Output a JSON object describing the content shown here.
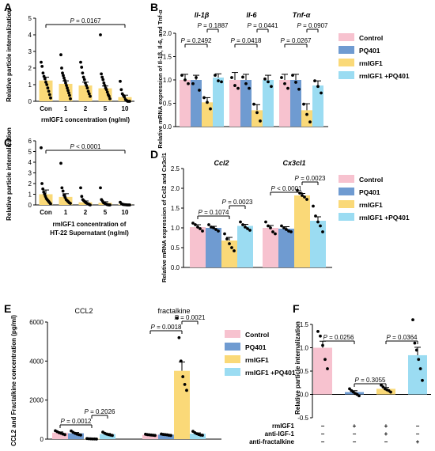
{
  "panel_labels": [
    "A",
    "B",
    "C",
    "D",
    "E",
    "F"
  ],
  "chart_data": [
    {
      "panel": "A",
      "type": "bar",
      "ylabel": "Relative particle internalization",
      "xlabel": "rmIGF1 concentration (ng/ml)",
      "ylim": [
        0,
        5
      ],
      "yticks": [
        "0",
        "1",
        "2",
        "3",
        "4",
        "5"
      ],
      "categories": [
        "Con",
        "1",
        "2",
        "5",
        "10"
      ],
      "values": [
        1.25,
        1.05,
        0.95,
        0.78,
        0.25
      ],
      "errors": [
        0.2,
        0.18,
        0.2,
        0.14,
        0.12
      ],
      "points": [
        [
          2.35,
          2.1,
          1.7,
          1.5,
          1.35,
          1.15,
          1.0,
          0.8,
          0.6,
          0.4,
          0.2
        ],
        [
          2.8,
          2.0,
          1.7,
          1.55,
          1.4,
          1.25,
          1.1,
          0.95,
          0.8,
          0.65,
          0.5,
          0.35,
          0.15
        ],
        [
          2.35,
          2.05,
          1.7,
          1.45,
          1.3,
          1.1,
          0.95,
          0.8,
          0.6,
          0.45,
          0.3
        ],
        [
          4.0,
          1.65,
          1.45,
          1.3,
          1.1,
          0.95,
          0.8,
          0.7,
          0.55,
          0.4,
          0.3,
          0.15
        ],
        [
          1.2,
          0.7,
          0.45,
          0.35,
          0.25,
          0.1,
          0.05,
          0.0,
          0.0,
          0.0
        ]
      ],
      "annotations": [
        {
          "text": "P = 0.0167"
        }
      ],
      "bar_color": "#FAD978",
      "grid": false
    },
    {
      "panel": "B",
      "type": "bar",
      "ylabel": "Relative mRNA expression of Il-1β, Il-6, and Tnf-α",
      "ylim": [
        0,
        2.0
      ],
      "yticks": [
        "0.0",
        "0.5",
        "1.0",
        "1.5",
        "2.0"
      ],
      "groups": [
        "Il-1β",
        "Il-6",
        "Tnf-α"
      ],
      "series": [
        {
          "name": "Control",
          "color": "#F7C2CF",
          "values": [
            1.0,
            1.0,
            1.0
          ],
          "errors": [
            0.12,
            0.16,
            0.12
          ],
          "points": [
            [
              1.1,
              1.0,
              0.92
            ],
            [
              1.05,
              0.88,
              0.82
            ],
            [
              1.05,
              0.92,
              0.82
            ]
          ]
        },
        {
          "name": "PQ401",
          "color": "#6F9BD1",
          "values": [
            1.0,
            1.0,
            1.0
          ],
          "errors": [
            0.1,
            0.12,
            0.12
          ],
          "points": [
            [
              0.92,
              1.05,
              0.78
            ],
            [
              1.06,
              0.92,
              0.82
            ],
            [
              1.1,
              0.95,
              0.8
            ]
          ]
        },
        {
          "name": "rmIGF1",
          "color": "#FAD978",
          "values": [
            0.52,
            0.35,
            0.35
          ],
          "errors": [
            0.1,
            0.12,
            0.14
          ],
          "points": [
            [
              0.62,
              0.52,
              0.38
            ],
            [
              0.48,
              0.3,
              0.12
            ],
            [
              0.48,
              0.26,
              0.1
            ]
          ]
        },
        {
          "name": "rmIGF1 +PQ401",
          "color": "#9BDCF2",
          "values": [
            1.05,
            1.0,
            0.88
          ],
          "errors": [
            0.08,
            0.1,
            0.1
          ],
          "points": [
            [
              1.1,
              0.98,
              0.96
            ],
            [
              1.02,
              0.96,
              0.86
            ],
            [
              0.98,
              0.86,
              0.72
            ]
          ]
        }
      ],
      "annotations": [
        {
          "text": "P = 0.2492"
        },
        {
          "text": "P = 0.1887"
        },
        {
          "text": "P = 0.0418"
        },
        {
          "text": "P = 0.0441"
        },
        {
          "text": "P = 0.0267"
        },
        {
          "text": "P = 0.0907"
        }
      ],
      "legend": "right",
      "grid": false
    },
    {
      "panel": "C",
      "type": "bar",
      "ylabel": "Relative particle internalization",
      "xlabel_lines": [
        "rmIGF1 concentration of",
        "HT-22 Supernatant (ng/ml)"
      ],
      "ylim": [
        0,
        6
      ],
      "yticks": [
        "0",
        "1",
        "2",
        "3",
        "4",
        "5",
        "6"
      ],
      "categories": [
        "Con",
        "1",
        "2",
        "5",
        "10"
      ],
      "values": [
        1.0,
        0.75,
        0.25,
        0.2,
        0.05
      ],
      "errors": [
        0.4,
        0.3,
        0.12,
        0.1,
        0.03
      ],
      "points": [
        [
          5.35,
          2.0,
          1.5,
          1.2,
          1.0,
          0.8,
          0.6,
          0.5,
          0.4,
          0.3,
          0.2,
          0.1
        ],
        [
          3.9,
          1.6,
          1.3,
          0.9,
          0.7,
          0.5,
          0.4,
          0.3,
          0.2,
          0.15
        ],
        [
          1.6,
          0.8,
          0.5,
          0.4,
          0.3,
          0.2,
          0.15,
          0.1,
          0.05,
          0.0
        ],
        [
          1.6,
          0.5,
          0.35,
          0.2,
          0.15,
          0.1,
          0.05,
          0.02,
          0.0,
          0.0
        ],
        [
          0.25,
          0.1,
          0.05,
          0.03,
          0.02,
          0.0,
          0.0,
          0.0
        ]
      ],
      "annotations": [
        {
          "text": "P < 0.0001"
        }
      ],
      "bar_color": "#FAD978",
      "grid": false
    },
    {
      "panel": "D",
      "type": "bar",
      "ylabel": "Relative mRNA expression of Ccl2 and Cx3cl1",
      "ylim": [
        0,
        2.5
      ],
      "yticks": [
        "0.0",
        "0.5",
        "1.0",
        "1.5",
        "2.0",
        "2.5"
      ],
      "groups": [
        "Ccl2",
        "Cx3cl1"
      ],
      "series": [
        {
          "name": "Control",
          "color": "#F7C2CF",
          "values": [
            1.02,
            1.0
          ],
          "errors": [
            0.06,
            0.06
          ],
          "points": [
            [
              1.12,
              1.08,
              1.02,
              0.98,
              0.92
            ],
            [
              1.15,
              1.05,
              1.0,
              0.9,
              0.85
            ]
          ]
        },
        {
          "name": "PQ401",
          "color": "#6F9BD1",
          "values": [
            1.0,
            0.98
          ],
          "errors": [
            0.04,
            0.05
          ],
          "points": [
            [
              1.08,
              1.02,
              1.0,
              0.96,
              0.92
            ],
            [
              1.05,
              1.0,
              0.96,
              0.92,
              0.9
            ]
          ]
        },
        {
          "name": "rmIGF1",
          "color": "#FAD978",
          "values": [
            0.68,
            1.82
          ],
          "errors": [
            0.08,
            0.05
          ],
          "points": [
            [
              0.85,
              0.72,
              0.6,
              0.5,
              0.42
            ],
            [
              1.95,
              1.88,
              1.82,
              1.78,
              1.72
            ]
          ]
        },
        {
          "name": "rmIGF1 +PQ401",
          "color": "#9BDCF2",
          "values": [
            1.05,
            1.18
          ],
          "errors": [
            0.04,
            0.1
          ],
          "points": [
            [
              1.15,
              1.08,
              1.02,
              0.98,
              0.94
            ],
            [
              1.55,
              1.3,
              1.15,
              1.05,
              0.9
            ]
          ]
        }
      ],
      "annotations": [
        {
          "text": "P = 0.1074"
        },
        {
          "text": "P = 0.0023"
        },
        {
          "text": "P < 0.0001"
        },
        {
          "text": "P = 0.0023"
        }
      ],
      "legend": "right",
      "grid": false
    },
    {
      "panel": "E",
      "type": "bar",
      "ylabel": "CCL2 and Fractalkine concentration (pg/ml)",
      "ylim": [
        0,
        6000
      ],
      "yticks": [
        "0",
        "2000",
        "4000",
        "6000"
      ],
      "groups": [
        "CCL2",
        "fractalkine"
      ],
      "series": [
        {
          "name": "Control",
          "color": "#F7C2CF",
          "values": [
            330,
            220
          ],
          "errors": [
            40,
            20
          ],
          "points": [
            [
              430,
              380,
              330,
              300,
              260,
              230
            ],
            [
              250,
              230,
              220,
              210,
              200,
              190
            ]
          ]
        },
        {
          "name": "PQ401",
          "color": "#6F9BD1",
          "values": [
            300,
            230
          ],
          "errors": [
            40,
            20
          ],
          "points": [
            [
              420,
              350,
              300,
              260,
              230,
              210
            ],
            [
              260,
              240,
              230,
              220,
              200,
              190
            ]
          ]
        },
        {
          "name": "rmIGF1",
          "color": "#FAD978",
          "values": [
            20,
            3500
          ],
          "errors": [
            5,
            450
          ],
          "points": [
            [
              30,
              20,
              15,
              10,
              10,
              5
            ],
            [
              6200,
              5200,
              4000,
              3200,
              2800,
              2500
            ]
          ]
        },
        {
          "name": "rmIGF1 +PQ401",
          "color": "#9BDCF2",
          "values": [
            260,
            280
          ],
          "errors": [
            30,
            40
          ],
          "points": [
            [
              360,
              300,
              260,
              230,
              210,
              190
            ],
            [
              400,
              330,
              280,
              240,
              210,
              200
            ]
          ]
        }
      ],
      "annotations": [
        {
          "text": "P = 0.0012"
        },
        {
          "text": "P = 0.2026"
        },
        {
          "text": "P = 0.0018"
        },
        {
          "text": "P = 0.0021"
        }
      ],
      "legend": "right",
      "grid": false
    },
    {
      "panel": "F",
      "type": "bar",
      "ylabel": "Relative particle internalization",
      "ylim": [
        -0.5,
        1.5
      ],
      "yticks": [
        "-0.5",
        "0.0",
        "0.5",
        "1.0",
        "1.5"
      ],
      "row_labels": [
        "rmIGF1",
        "anti-IGF-1",
        "anti-fractalkine"
      ],
      "conditions": [
        [
          "−",
          "+",
          "+",
          "−"
        ],
        [
          "−",
          "−",
          "+",
          "−"
        ],
        [
          "−",
          "−",
          "−",
          "+"
        ]
      ],
      "values": [
        1.0,
        0.05,
        0.12,
        0.84
      ],
      "errors": [
        0.14,
        0.03,
        0.03,
        0.17
      ],
      "colors": [
        "#F7C2CF",
        "#6F9BD1",
        "#FAD978",
        "#9BDCF2"
      ],
      "points": [
        [
          1.35,
          1.25,
          1.05,
          0.75,
          0.55
        ],
        [
          0.12,
          0.08,
          0.05,
          0.02,
          0.0,
          -0.03
        ],
        [
          0.2,
          0.16,
          0.12,
          0.1,
          0.08,
          0.05
        ],
        [
          1.6,
          1.1,
          0.95,
          0.75,
          0.55,
          0.3
        ]
      ],
      "annotations": [
        {
          "text": "P = 0.0256"
        },
        {
          "text": "P = 0.3055"
        },
        {
          "text": "P = 0.0364"
        }
      ],
      "grid": false
    }
  ]
}
